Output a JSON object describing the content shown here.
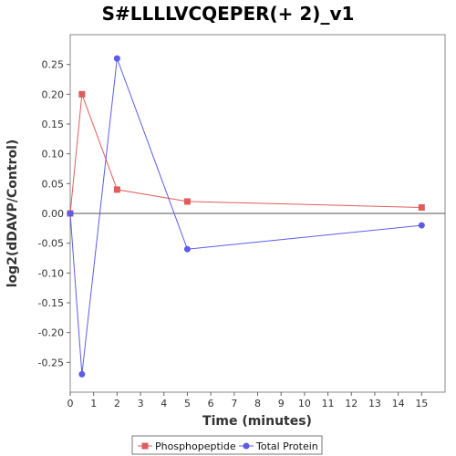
{
  "chart_data": {
    "type": "line",
    "title": "S#LLLLVCQEPER(+ 2)_v1",
    "xlabel": "Time (minutes)",
    "ylabel": "log2(dDAVP/Control)",
    "xlim": [
      0,
      16
    ],
    "ylim": [
      -0.3,
      0.3
    ],
    "x_ticks": [
      0,
      1,
      2,
      3,
      4,
      5,
      6,
      7,
      8,
      9,
      10,
      11,
      12,
      13,
      14,
      15
    ],
    "y_ticks": [
      -0.25,
      -0.2,
      -0.15,
      -0.1,
      -0.05,
      0.0,
      0.05,
      0.1,
      0.15,
      0.2,
      0.25
    ],
    "y_tick_labels": [
      "-0.25",
      "-0.20",
      "-0.15",
      "-0.10",
      "-0.05",
      "0.00",
      "0.05",
      "0.10",
      "0.15",
      "0.20",
      "0.25"
    ],
    "zero_line": true,
    "grid": false,
    "legend_position": "bottom",
    "series": [
      {
        "name": "Phosphopeptide",
        "color": "#e05c5c",
        "marker": "square",
        "x": [
          0,
          0.5,
          2,
          5,
          15
        ],
        "y": [
          0.0,
          0.2,
          0.04,
          0.02,
          0.01
        ]
      },
      {
        "name": "Total Protein",
        "color": "#5c5ce8",
        "marker": "circle",
        "x": [
          0,
          0.5,
          2,
          5,
          15
        ],
        "y": [
          0.0,
          -0.27,
          0.26,
          -0.06,
          -0.02
        ]
      }
    ]
  }
}
